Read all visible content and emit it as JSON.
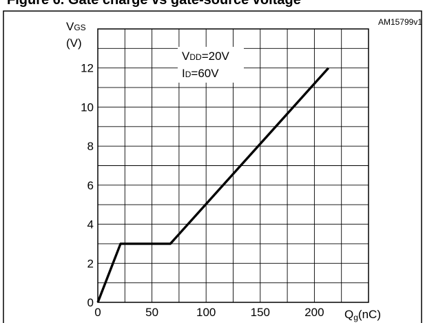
{
  "page_heading": "Figure 6. Gate charge vs gate-source voltage",
  "figure_id": "AM15799v1",
  "chart_data": {
    "type": "line",
    "title": "",
    "ylabel_main": "V",
    "ylabel_sub": "GS",
    "ylabel_unit": "(V)",
    "xlabel_main": "Q",
    "xlabel_sub": "g",
    "xlabel_unit": "(nC)",
    "xlim": [
      0,
      250
    ],
    "ylim": [
      0,
      14
    ],
    "x_ticks": [
      0,
      50,
      100,
      150,
      200
    ],
    "y_ticks": [
      0,
      2,
      4,
      6,
      8,
      10,
      12
    ],
    "grid": true,
    "annotations": [
      {
        "main": "V",
        "sub": "DD",
        "rest": "=20V"
      },
      {
        "main": "I",
        "sub": "D",
        "rest": "=60V"
      }
    ],
    "series": [
      {
        "x": [
          0,
          21,
          67,
          213
        ],
        "y": [
          0,
          3,
          3,
          12
        ],
        "color": "#000000"
      }
    ]
  }
}
